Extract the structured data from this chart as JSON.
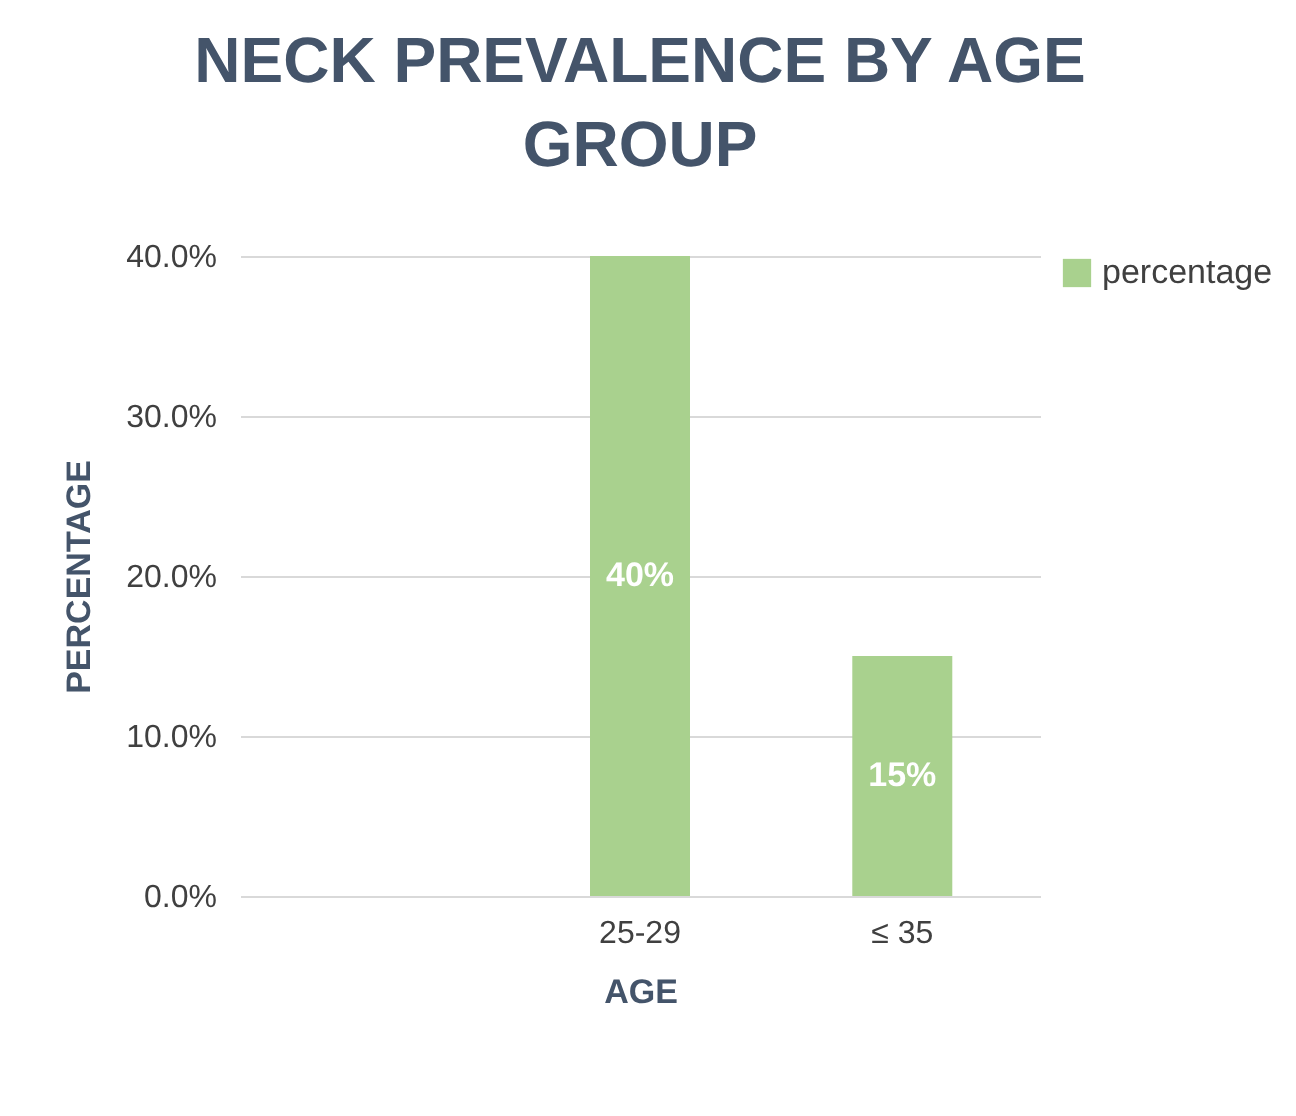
{
  "chart_data": {
    "type": "bar",
    "title": "NECK PREVALENCE BY AGE GROUP",
    "xlabel": "AGE",
    "ylabel": "PERCENTAGE",
    "categories": [
      null,
      "25-29",
      "≤ 35"
    ],
    "series": [
      {
        "name": "percentage",
        "color": "#a9d18e",
        "values": [
          null,
          40,
          15
        ],
        "value_labels": [
          null,
          "40%",
          "15%"
        ]
      }
    ],
    "ylim": [
      0,
      40
    ],
    "yticks": [
      {
        "value": 0,
        "label": "0.0%"
      },
      {
        "value": 10,
        "label": "10.0%"
      },
      {
        "value": 20,
        "label": "20.0%"
      },
      {
        "value": 30,
        "label": "30.0%"
      },
      {
        "value": 40,
        "label": "40.0%"
      }
    ],
    "grid": "y",
    "legend": "right"
  }
}
